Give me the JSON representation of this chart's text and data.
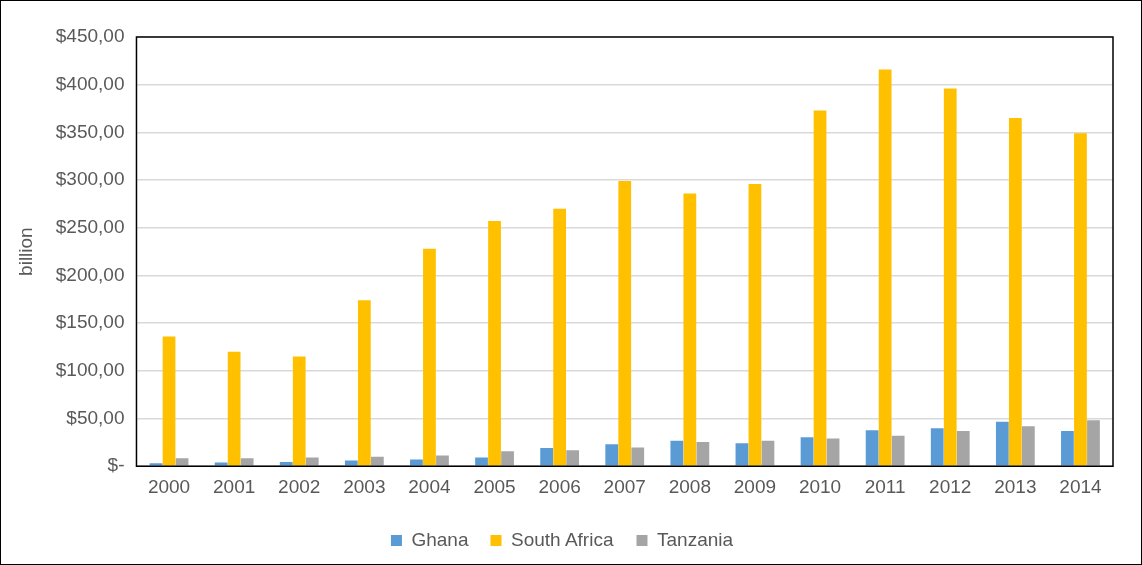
{
  "chart_data": {
    "type": "bar",
    "ylabel": "billion",
    "categories": [
      "2000",
      "2001",
      "2002",
      "2003",
      "2004",
      "2005",
      "2006",
      "2007",
      "2008",
      "2009",
      "2010",
      "2011",
      "2012",
      "2013",
      "2014"
    ],
    "series": [
      {
        "name": "Ghana",
        "color": "#5b9bd5",
        "values": [
          3,
          4,
          4.5,
          6,
          7,
          9,
          19,
          23,
          26.6,
          24,
          30.3,
          37.6,
          39.8,
          46.7,
          36.9
        ]
      },
      {
        "name": "South Africa",
        "color": "#ffc000",
        "values": [
          136,
          120,
          115,
          174,
          228,
          257,
          270,
          299,
          286,
          296,
          373,
          416,
          396,
          365,
          349
        ]
      },
      {
        "name": "Tanzania",
        "color": "#a5a5a5",
        "values": [
          8.4,
          8.4,
          9,
          10,
          11.3,
          15.7,
          16.8,
          19.7,
          25.5,
          26.6,
          29,
          31.8,
          36.9,
          42,
          48.2
        ]
      }
    ],
    "ylim": [
      0,
      450
    ],
    "yticks": [
      {
        "value": 0,
        "label": "$-"
      },
      {
        "value": 50,
        "label": "$50,00"
      },
      {
        "value": 100,
        "label": "$100,00"
      },
      {
        "value": 150,
        "label": "$150,00"
      },
      {
        "value": 200,
        "label": "$200,00"
      },
      {
        "value": 250,
        "label": "$250,00"
      },
      {
        "value": 300,
        "label": "$300,00"
      },
      {
        "value": 350,
        "label": "$350,00"
      },
      {
        "value": 400,
        "label": "$400,00"
      },
      {
        "value": 450,
        "label": "$450,00"
      }
    ],
    "grid": "y",
    "legend": "bottom"
  }
}
